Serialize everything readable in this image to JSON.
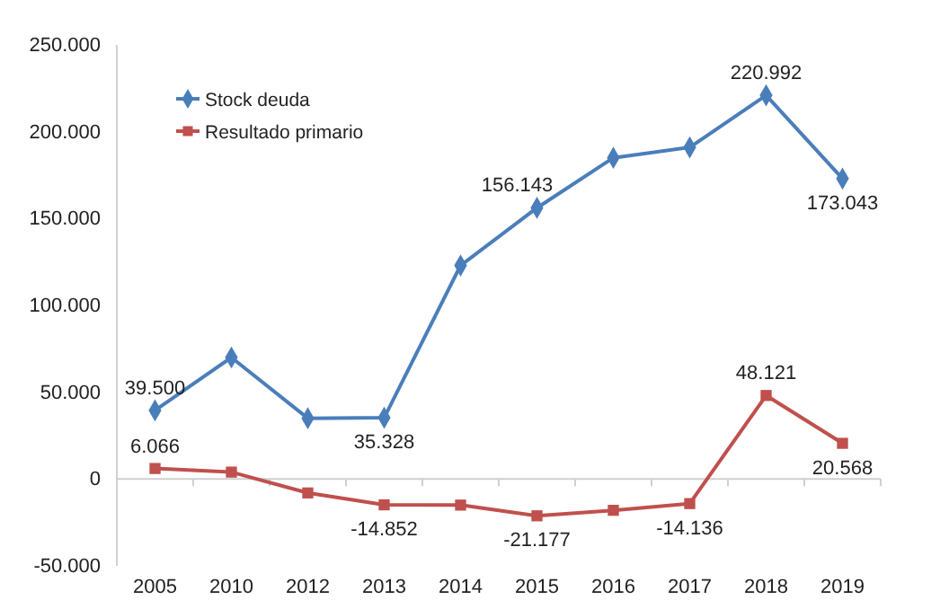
{
  "chart_data": {
    "type": "line",
    "categories": [
      "2005",
      "2010",
      "2012",
      "2013",
      "2014",
      "2015",
      "2016",
      "2017",
      "2018",
      "2019"
    ],
    "series": [
      {
        "name": "Stock deuda",
        "color": "#4a7ebb",
        "marker": "diamond",
        "values": [
          39500,
          70000,
          35000,
          35328,
          123000,
          156143,
          185000,
          191000,
          220992,
          173043
        ],
        "value_labels": [
          "39.500",
          null,
          null,
          "35.328",
          null,
          "156.143",
          null,
          null,
          "220.992",
          "173.043"
        ]
      },
      {
        "name": "Resultado primario",
        "color": "#c0504d",
        "marker": "square",
        "values": [
          6066,
          4000,
          -8000,
          -14852,
          -15000,
          -21177,
          -18000,
          -14136,
          48121,
          20568
        ],
        "value_labels": [
          "6.066",
          null,
          null,
          "-14.852",
          null,
          "-21.177",
          null,
          "-14.136",
          "48.121",
          "20.568"
        ]
      }
    ],
    "ylim": [
      -50000,
      250000
    ],
    "yticks": [
      {
        "value": -50000,
        "label": "-50.000"
      },
      0,
      {
        "value": 50000,
        "label": "50.000"
      },
      {
        "value": 100000,
        "label": "100.000"
      },
      {
        "value": 150000,
        "label": "150.000"
      },
      {
        "value": 200000,
        "label": "200.000"
      },
      {
        "value": 250000,
        "label": "250.000"
      }
    ],
    "legend": "top left",
    "line_style": "solid"
  }
}
